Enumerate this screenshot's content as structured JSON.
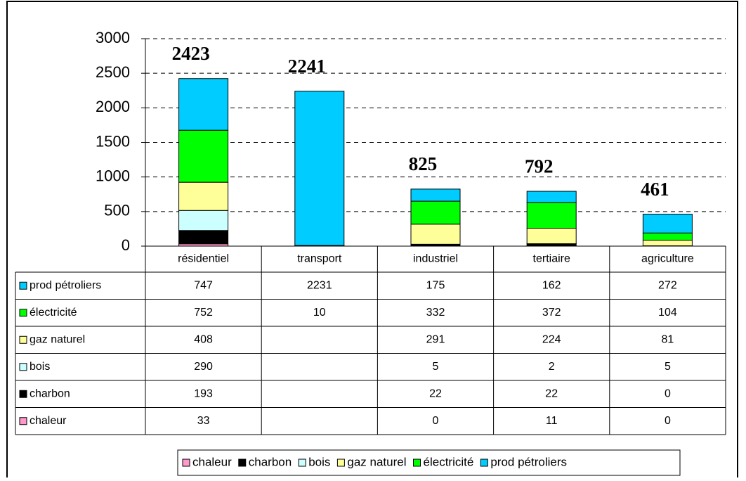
{
  "chart_data": {
    "type": "bar",
    "stacked": true,
    "categories": [
      "résidentiel",
      "transport",
      "industriel",
      "tertiaire",
      "agriculture"
    ],
    "series": [
      {
        "name": "chaleur",
        "color": "#ff99cc",
        "values": [
          33,
          null,
          0,
          11,
          0
        ]
      },
      {
        "name": "charbon",
        "color": "#000000",
        "values": [
          193,
          null,
          22,
          22,
          0
        ]
      },
      {
        "name": "bois",
        "color": "#ccffff",
        "values": [
          290,
          null,
          5,
          2,
          5
        ]
      },
      {
        "name": "gaz naturel",
        "color": "#ffff99",
        "values": [
          408,
          null,
          291,
          224,
          81
        ]
      },
      {
        "name": "électricité",
        "color": "#00ff00",
        "values": [
          752,
          10,
          332,
          372,
          104
        ]
      },
      {
        "name": "prod pétroliers",
        "color": "#00ccff",
        "values": [
          747,
          2231,
          175,
          162,
          272
        ]
      }
    ],
    "totals": [
      2423,
      2241,
      825,
      792,
      461
    ],
    "ylim": [
      0,
      3000
    ],
    "yticks": [
      0,
      500,
      1000,
      1500,
      2000,
      2500,
      3000
    ],
    "grid": true
  }
}
